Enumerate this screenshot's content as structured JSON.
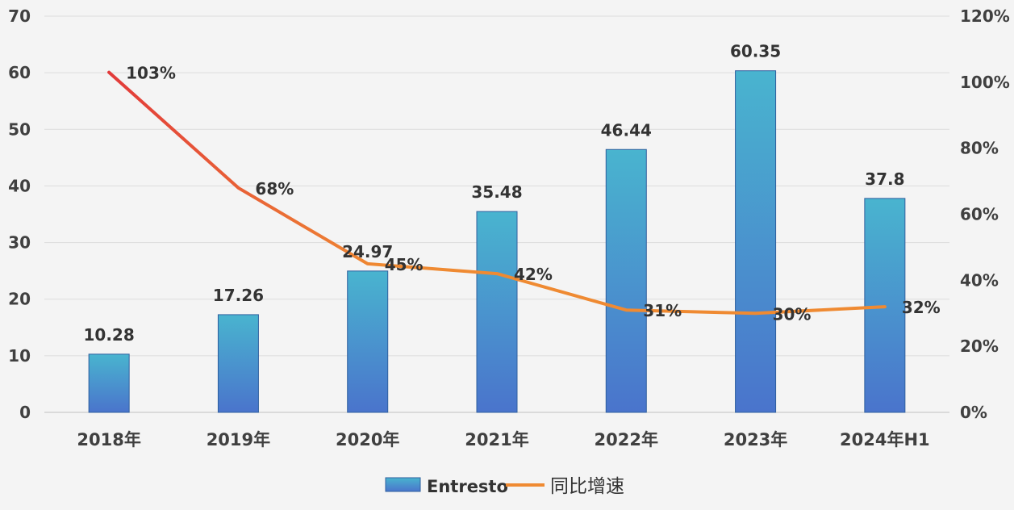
{
  "chart_data": {
    "type": "bar",
    "categories": [
      "2018年",
      "2019年",
      "2020年",
      "2021年",
      "2022年",
      "2023年",
      "2024年H1"
    ],
    "series": [
      {
        "name": "Entresto",
        "type": "bar",
        "axis": "left",
        "values": [
          10.28,
          17.26,
          24.97,
          35.48,
          46.44,
          60.35,
          37.8
        ],
        "labels": [
          "10.28",
          "17.26",
          "24.97",
          "35.48",
          "46.44",
          "60.35",
          "37.8"
        ]
      },
      {
        "name": "同比增速",
        "type": "line",
        "axis": "right",
        "values": [
          103,
          68,
          45,
          42,
          31,
          30,
          32
        ],
        "labels": [
          "103%",
          "68%",
          "45%",
          "42%",
          "31%",
          "30%",
          "32%"
        ]
      }
    ],
    "y_left": {
      "ylim": [
        0,
        70
      ],
      "ticks": [
        "0",
        "10",
        "20",
        "30",
        "40",
        "50",
        "60",
        "70"
      ]
    },
    "y_right": {
      "ylim": [
        0,
        120
      ],
      "ticks": [
        "0%",
        "20%",
        "40%",
        "60%",
        "80%",
        "100%",
        "120%"
      ]
    },
    "grid": true,
    "legend": "bottom-center",
    "colors": {
      "bar_top": "#49b4cf",
      "bar_bottom": "#4a74cc",
      "bar_stroke": "#2f5f9e",
      "line_start": "#e23a3a",
      "line_end": "#ef8a32"
    }
  }
}
